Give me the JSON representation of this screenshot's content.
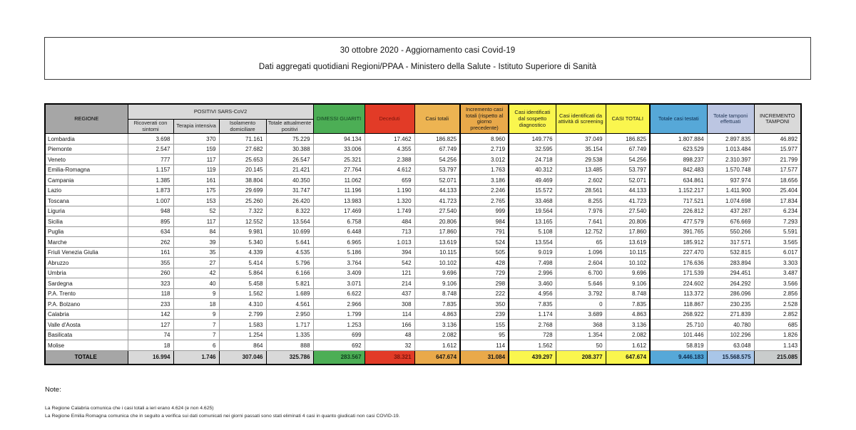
{
  "title": {
    "line1": "30 ottobre 2020 - Aggiornamento casi Covid-19",
    "line2": "Dati aggregati quotidiani Regioni/PPAA - Ministero della Salute - Istituto Superiore di Sanità"
  },
  "colors": {
    "header_gray": "#a6a6a6",
    "header_light_gray": "#d9d9d9",
    "green": "#4cae55",
    "green_text": "#123f1f",
    "red": "#e23b27",
    "red_text": "#7a150c",
    "orange_light": "#edb452",
    "orange": "#e9a94a",
    "yellow": "#faf64e",
    "blue": "#56a8d8",
    "blue_text": "#0d2b4e",
    "lavender": "#bcc6e2",
    "total_lavender": "#a9c6e8",
    "total_gray": "#c9cccc"
  },
  "table": {
    "group_header": "POSITIVI SARS-CoV2",
    "columns": [
      {
        "id": "regione",
        "label": "REGIONE",
        "bg": "#a6a6a6",
        "fg": "#000000",
        "bold": true,
        "group": false
      },
      {
        "id": "ricoverati",
        "label": "Ricoverati con sintomi",
        "bg": "#d9d9d9",
        "fg": "#222222",
        "bold": false,
        "group": true
      },
      {
        "id": "terapia",
        "label": "Terapia intensiva",
        "bg": "#d9d9d9",
        "fg": "#222222",
        "bold": false,
        "group": true
      },
      {
        "id": "isolamento",
        "label": "Isolamento domiciliare",
        "bg": "#d9d9d9",
        "fg": "#222222",
        "bold": false,
        "group": true
      },
      {
        "id": "attualmente",
        "label": "Totale attualmente positivi",
        "bg": "#d9d9d9",
        "fg": "#222222",
        "bold": false,
        "group": true
      },
      {
        "id": "dimessi",
        "label": "DIMESSI GUARITI",
        "bg": "#4cae55",
        "fg": "#123f1f",
        "bold": false,
        "group": false
      },
      {
        "id": "deceduti",
        "label": "Deceduti",
        "bg": "#e23b27",
        "fg": "#7a150c",
        "bold": false,
        "group": false
      },
      {
        "id": "casi_totali",
        "label": "Casi totali",
        "bg": "#edb452",
        "fg": "#1a1a1a",
        "bold": false,
        "group": false
      },
      {
        "id": "incremento_casi",
        "label": "Incremento casi totali (rispetto al giorno precedente)",
        "bg": "#e9a94a",
        "fg": "#1a1a1a",
        "bold": false,
        "group": false
      },
      {
        "id": "sospetto",
        "label": "Casi identificati dal sospetto diagnostico",
        "bg": "#faf64e",
        "fg": "#1a1a1a",
        "bold": false,
        "group": false
      },
      {
        "id": "screening",
        "label": "Casi identificati da attività di screening",
        "bg": "#faf64e",
        "fg": "#1a1a1a",
        "bold": false,
        "group": false
      },
      {
        "id": "casi_totali_2",
        "label": "CASI TOTALI",
        "bg": "#faf64e",
        "fg": "#1a1a1a",
        "bold": true,
        "group": false
      },
      {
        "id": "testati",
        "label": "Totale casi testati",
        "bg": "#56a8d8",
        "fg": "#0d2b4e",
        "bold": false,
        "group": false
      },
      {
        "id": "tamponi",
        "label": "Totale tamponi effettuati",
        "bg": "#bcc6e2",
        "fg": "#1f3455",
        "bold": false,
        "group": false
      },
      {
        "id": "incremento_tamponi",
        "label": "INCREMENTO TAMPONI",
        "bg": "#d9d9d9",
        "fg": "#1a1a1a",
        "bold": false,
        "group": false
      }
    ],
    "rows": [
      {
        "regione": "Lombardia",
        "values": [
          "3.698",
          "370",
          "71.161",
          "75.229",
          "94.134",
          "17.462",
          "186.825",
          "8.960",
          "149.776",
          "37.049",
          "186.825",
          "1.807.884",
          "2.897.835",
          "46.892"
        ]
      },
      {
        "regione": "Piemonte",
        "values": [
          "2.547",
          "159",
          "27.682",
          "30.388",
          "33.006",
          "4.355",
          "67.749",
          "2.719",
          "32.595",
          "35.154",
          "67.749",
          "623.529",
          "1.013.484",
          "15.977"
        ]
      },
      {
        "regione": "Veneto",
        "values": [
          "777",
          "117",
          "25.653",
          "26.547",
          "25.321",
          "2.388",
          "54.256",
          "3.012",
          "24.718",
          "29.538",
          "54.256",
          "898.237",
          "2.310.397",
          "21.799"
        ]
      },
      {
        "regione": "Emilia-Romagna",
        "values": [
          "1.157",
          "119",
          "20.145",
          "21.421",
          "27.764",
          "4.612",
          "53.797",
          "1.763",
          "40.312",
          "13.485",
          "53.797",
          "842.483",
          "1.570.748",
          "17.577"
        ]
      },
      {
        "regione": "Campania",
        "values": [
          "1.385",
          "161",
          "38.804",
          "40.350",
          "11.062",
          "659",
          "52.071",
          "3.186",
          "49.469",
          "2.602",
          "52.071",
          "634.861",
          "937.974",
          "18.656"
        ]
      },
      {
        "regione": "Lazio",
        "values": [
          "1.873",
          "175",
          "29.699",
          "31.747",
          "11.196",
          "1.190",
          "44.133",
          "2.246",
          "15.572",
          "28.561",
          "44.133",
          "1.152.217",
          "1.411.900",
          "25.404"
        ]
      },
      {
        "regione": "Toscana",
        "values": [
          "1.007",
          "153",
          "25.260",
          "26.420",
          "13.983",
          "1.320",
          "41.723",
          "2.765",
          "33.468",
          "8.255",
          "41.723",
          "717.521",
          "1.074.698",
          "17.834"
        ]
      },
      {
        "regione": "Liguria",
        "values": [
          "948",
          "52",
          "7.322",
          "8.322",
          "17.469",
          "1.749",
          "27.540",
          "999",
          "19.564",
          "7.976",
          "27.540",
          "226.812",
          "437.287",
          "6.234"
        ]
      },
      {
        "regione": "Sicilia",
        "values": [
          "895",
          "117",
          "12.552",
          "13.564",
          "6.758",
          "484",
          "20.806",
          "984",
          "13.165",
          "7.641",
          "20.806",
          "477.579",
          "676.669",
          "7.293"
        ]
      },
      {
        "regione": "Puglia",
        "values": [
          "634",
          "84",
          "9.981",
          "10.699",
          "6.448",
          "713",
          "17.860",
          "791",
          "5.108",
          "12.752",
          "17.860",
          "391.765",
          "550.266",
          "5.591"
        ]
      },
      {
        "regione": "Marche",
        "values": [
          "262",
          "39",
          "5.340",
          "5.641",
          "6.965",
          "1.013",
          "13.619",
          "524",
          "13.554",
          "65",
          "13.619",
          "185.912",
          "317.571",
          "3.565"
        ]
      },
      {
        "regione": "Friuli Venezia Giulia",
        "values": [
          "161",
          "35",
          "4.339",
          "4.535",
          "5.186",
          "394",
          "10.115",
          "505",
          "9.019",
          "1.096",
          "10.115",
          "227.470",
          "532.815",
          "6.017"
        ]
      },
      {
        "regione": "Abruzzo",
        "values": [
          "355",
          "27",
          "5.414",
          "5.796",
          "3.764",
          "542",
          "10.102",
          "428",
          "7.498",
          "2.604",
          "10.102",
          "176.636",
          "283.894",
          "3.303"
        ]
      },
      {
        "regione": "Umbria",
        "values": [
          "260",
          "42",
          "5.864",
          "6.166",
          "3.409",
          "121",
          "9.696",
          "729",
          "2.996",
          "6.700",
          "9.696",
          "171.539",
          "294.451",
          "3.487"
        ]
      },
      {
        "regione": "Sardegna",
        "values": [
          "323",
          "40",
          "5.458",
          "5.821",
          "3.071",
          "214",
          "9.106",
          "298",
          "3.460",
          "5.646",
          "9.106",
          "224.602",
          "264.292",
          "3.566"
        ]
      },
      {
        "regione": "P.A. Trento",
        "values": [
          "118",
          "9",
          "1.562",
          "1.689",
          "6.622",
          "437",
          "8.748",
          "222",
          "4.956",
          "3.792",
          "8.748",
          "113.372",
          "286.096",
          "2.856"
        ]
      },
      {
        "regione": "P.A. Bolzano",
        "values": [
          "233",
          "18",
          "4.310",
          "4.561",
          "2.966",
          "308",
          "7.835",
          "350",
          "7.835",
          "0",
          "7.835",
          "118.867",
          "230.235",
          "2.528"
        ]
      },
      {
        "regione": "Calabria",
        "values": [
          "142",
          "9",
          "2.799",
          "2.950",
          "1.799",
          "114",
          "4.863",
          "239",
          "1.174",
          "3.689",
          "4.863",
          "268.922",
          "271.839",
          "2.852"
        ]
      },
      {
        "regione": "Valle d'Aosta",
        "values": [
          "127",
          "7",
          "1.583",
          "1.717",
          "1.253",
          "166",
          "3.136",
          "155",
          "2.768",
          "368",
          "3.136",
          "25.710",
          "40.780",
          "685"
        ]
      },
      {
        "regione": "Basilicata",
        "values": [
          "74",
          "7",
          "1.254",
          "1.335",
          "699",
          "48",
          "2.082",
          "95",
          "728",
          "1.354",
          "2.082",
          "101.446",
          "102.296",
          "1.826"
        ]
      },
      {
        "regione": "Molise",
        "values": [
          "18",
          "6",
          "864",
          "888",
          "692",
          "32",
          "1.612",
          "114",
          "1.562",
          "50",
          "1.612",
          "58.819",
          "63.048",
          "1.143"
        ]
      }
    ],
    "total_row": {
      "label": "TOTALE",
      "values": [
        "16.994",
        "1.746",
        "307.046",
        "325.786",
        "283.567",
        "38.321",
        "647.674",
        "31.084",
        "439.297",
        "208.377",
        "647.674",
        "9.446.183",
        "15.568.575",
        "215.085"
      ],
      "cell_bgs": [
        "#a6a6a6",
        "#d9d9d9",
        "#d9d9d9",
        "#d9d9d9",
        "#d9d9d9",
        "#4cae55",
        "#e23b27",
        "#e9a94a",
        "#e9a94a",
        "#faf64e",
        "#faf64e",
        "#faf64e",
        "#56a8d8",
        "#a9c6e8",
        "#c9cccc"
      ],
      "cell_fgs": [
        "#000000",
        "#141414",
        "#141414",
        "#141414",
        "#141414",
        "#0e3d1c",
        "#7a150c",
        "#141414",
        "#141414",
        "#141414",
        "#141414",
        "#141414",
        "#0d2b4e",
        "#10233d",
        "#141414"
      ]
    }
  },
  "notes": {
    "heading": "Note:",
    "lines": [
      "La Regione Calabria comunica che i casi totali a ieri erano 4.624 (e non 4.625)",
      "La Regione Emilia Romagna comunica che in seguito a verifica sui dati comunicati nei giorni passati sono stati eliminati 4 casi in quanto giudicati non casi COVID-19."
    ]
  }
}
